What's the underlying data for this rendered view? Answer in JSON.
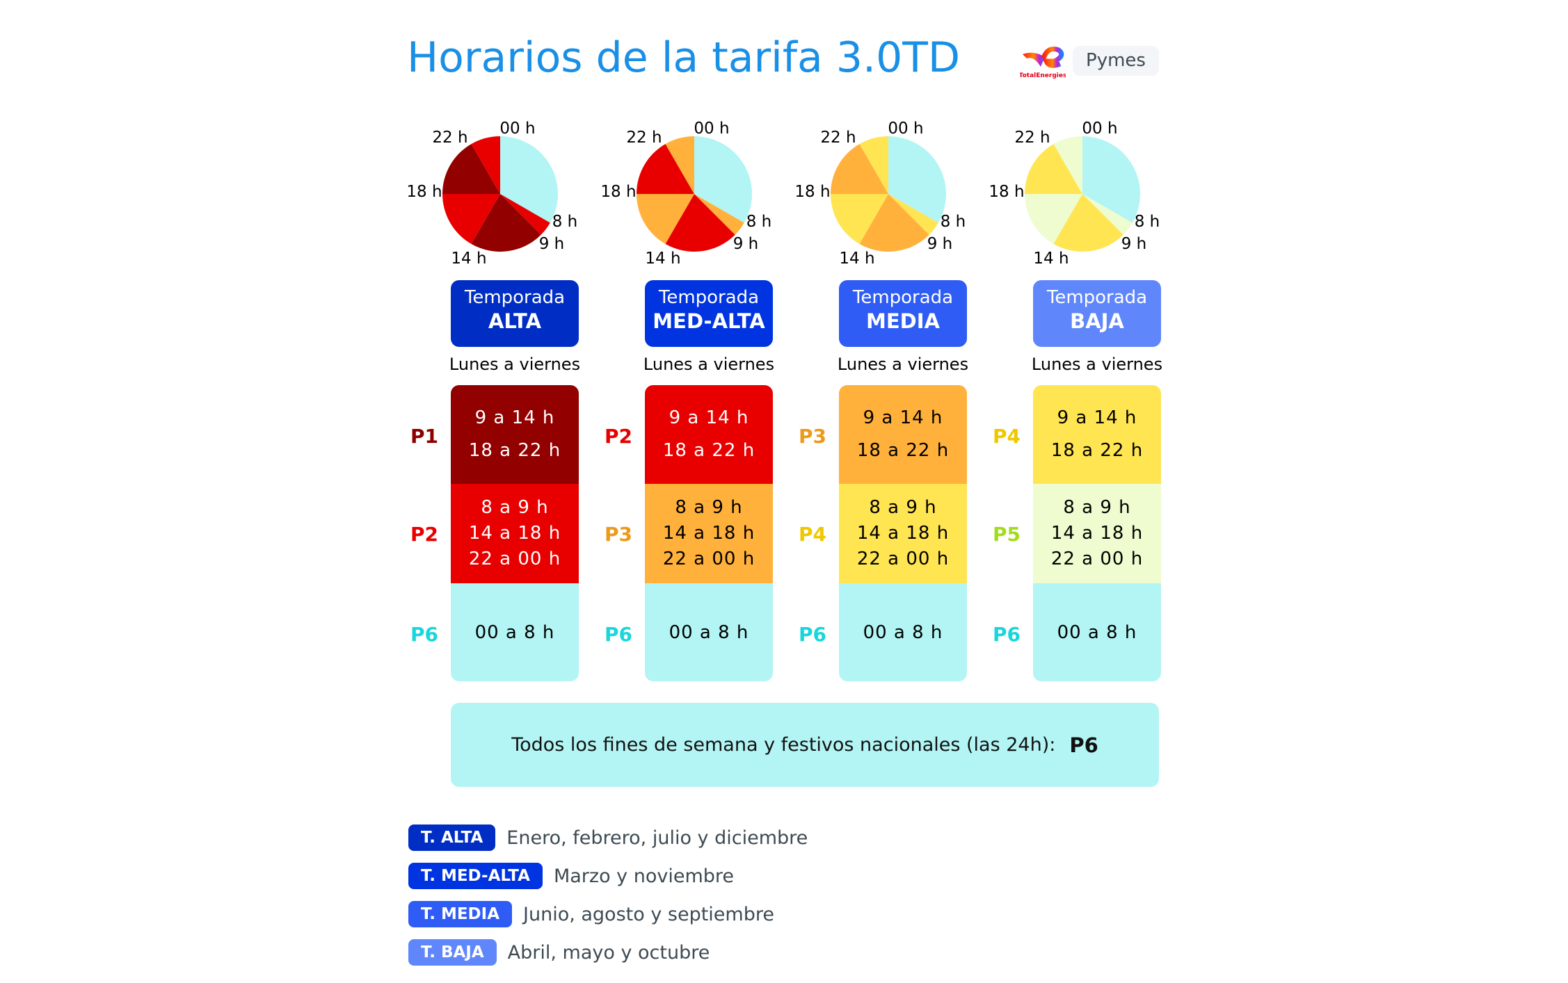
{
  "title": "Horarios de la tarifa 3.0TD",
  "brand": {
    "logo_text": "TotalEnergies",
    "segment_label": "Pymes"
  },
  "colors": {
    "title": "#1a8fe6",
    "P1": "#920000",
    "P2": "#e80000",
    "P3": "#ffb13b",
    "P4": "#ffe552",
    "P5": "#effccf",
    "P6": "#b3f5f4",
    "label_P1": "#8c0000",
    "label_P2": "#e80000",
    "label_P3": "#ec9a1a",
    "label_P4": "#f0c800",
    "label_P5": "#a3dc1e",
    "label_P6": "#19d6dc"
  },
  "pie_labels": [
    "00 h",
    "8 h",
    "9 h",
    "14 h",
    "18 h",
    "22 h"
  ],
  "weekday_label": "Lunes a viernes",
  "seasons": [
    {
      "prefix": "Temporada",
      "name": "ALTA",
      "badge_color": "#002ec4",
      "rows": [
        {
          "period": "P1",
          "lines": [
            "9 a 14 h",
            "18 a 22 h"
          ],
          "text_color": "#ffffff"
        },
        {
          "period": "P2",
          "lines": [
            "8 a 9 h",
            "14 a 18 h",
            "22 a 00 h"
          ],
          "text_color": "#ffffff"
        },
        {
          "period": "P6",
          "lines": [
            "00 a 8 h"
          ],
          "text_color": "#000000"
        }
      ],
      "pie": [
        {
          "from": 0,
          "to": 8,
          "period": "P6"
        },
        {
          "from": 8,
          "to": 9,
          "period": "P2"
        },
        {
          "from": 9,
          "to": 14,
          "period": "P1"
        },
        {
          "from": 14,
          "to": 18,
          "period": "P2"
        },
        {
          "from": 18,
          "to": 22,
          "period": "P1"
        },
        {
          "from": 22,
          "to": 24,
          "period": "P2"
        }
      ]
    },
    {
      "prefix": "Temporada",
      "name": "MED-ALTA",
      "badge_color": "#0034e0",
      "rows": [
        {
          "period": "P2",
          "lines": [
            "9 a 14 h",
            "18 a 22 h"
          ],
          "text_color": "#ffffff"
        },
        {
          "period": "P3",
          "lines": [
            "8 a 9 h",
            "14 a 18 h",
            "22 a 00 h"
          ],
          "text_color": "#000000"
        },
        {
          "period": "P6",
          "lines": [
            "00 a 8 h"
          ],
          "text_color": "#000000"
        }
      ],
      "pie": [
        {
          "from": 0,
          "to": 8,
          "period": "P6"
        },
        {
          "from": 8,
          "to": 9,
          "period": "P3"
        },
        {
          "from": 9,
          "to": 14,
          "period": "P2"
        },
        {
          "from": 14,
          "to": 18,
          "period": "P3"
        },
        {
          "from": 18,
          "to": 22,
          "period": "P2"
        },
        {
          "from": 22,
          "to": 24,
          "period": "P3"
        }
      ]
    },
    {
      "prefix": "Temporada",
      "name": "MEDIA",
      "badge_color": "#2e5cf5",
      "rows": [
        {
          "period": "P3",
          "lines": [
            "9 a 14 h",
            "18 a 22 h"
          ],
          "text_color": "#000000"
        },
        {
          "period": "P4",
          "lines": [
            "8 a 9 h",
            "14 a 18 h",
            "22 a 00 h"
          ],
          "text_color": "#000000"
        },
        {
          "period": "P6",
          "lines": [
            "00 a 8 h"
          ],
          "text_color": "#000000"
        }
      ],
      "pie": [
        {
          "from": 0,
          "to": 8,
          "period": "P6"
        },
        {
          "from": 8,
          "to": 9,
          "period": "P4"
        },
        {
          "from": 9,
          "to": 14,
          "period": "P3"
        },
        {
          "from": 14,
          "to": 18,
          "period": "P4"
        },
        {
          "from": 18,
          "to": 22,
          "period": "P3"
        },
        {
          "from": 22,
          "to": 24,
          "period": "P4"
        }
      ]
    },
    {
      "prefix": "Temporada",
      "name": "BAJA",
      "badge_color": "#5f87fb",
      "rows": [
        {
          "period": "P4",
          "lines": [
            "9 a 14 h",
            "18 a 22 h"
          ],
          "text_color": "#000000"
        },
        {
          "period": "P5",
          "lines": [
            "8 a 9 h",
            "14 a 18 h",
            "22 a 00 h"
          ],
          "text_color": "#000000"
        },
        {
          "period": "P6",
          "lines": [
            "00 a 8 h"
          ],
          "text_color": "#000000"
        }
      ],
      "pie": [
        {
          "from": 0,
          "to": 8,
          "period": "P6"
        },
        {
          "from": 8,
          "to": 9,
          "period": "P5"
        },
        {
          "from": 9,
          "to": 14,
          "period": "P4"
        },
        {
          "from": 14,
          "to": 18,
          "period": "P5"
        },
        {
          "from": 18,
          "to": 22,
          "period": "P4"
        },
        {
          "from": 22,
          "to": 24,
          "period": "P5"
        }
      ]
    }
  ],
  "weekend": {
    "text": "Todos los fines de semana y festivos nacionales (las 24h):",
    "period": "P6"
  },
  "legend": [
    {
      "badge": "T. ALTA",
      "months": "Enero, febrero, julio y diciembre",
      "color": "#002ec4"
    },
    {
      "badge": "T. MED-ALTA",
      "months": "Marzo y noviembre",
      "color": "#0034e0"
    },
    {
      "badge": "T. MEDIA",
      "months": "Junio, agosto y septiembre",
      "color": "#2e5cf5"
    },
    {
      "badge": "T. BAJA",
      "months": "Abril, mayo y octubre",
      "color": "#5f87fb"
    }
  ]
}
